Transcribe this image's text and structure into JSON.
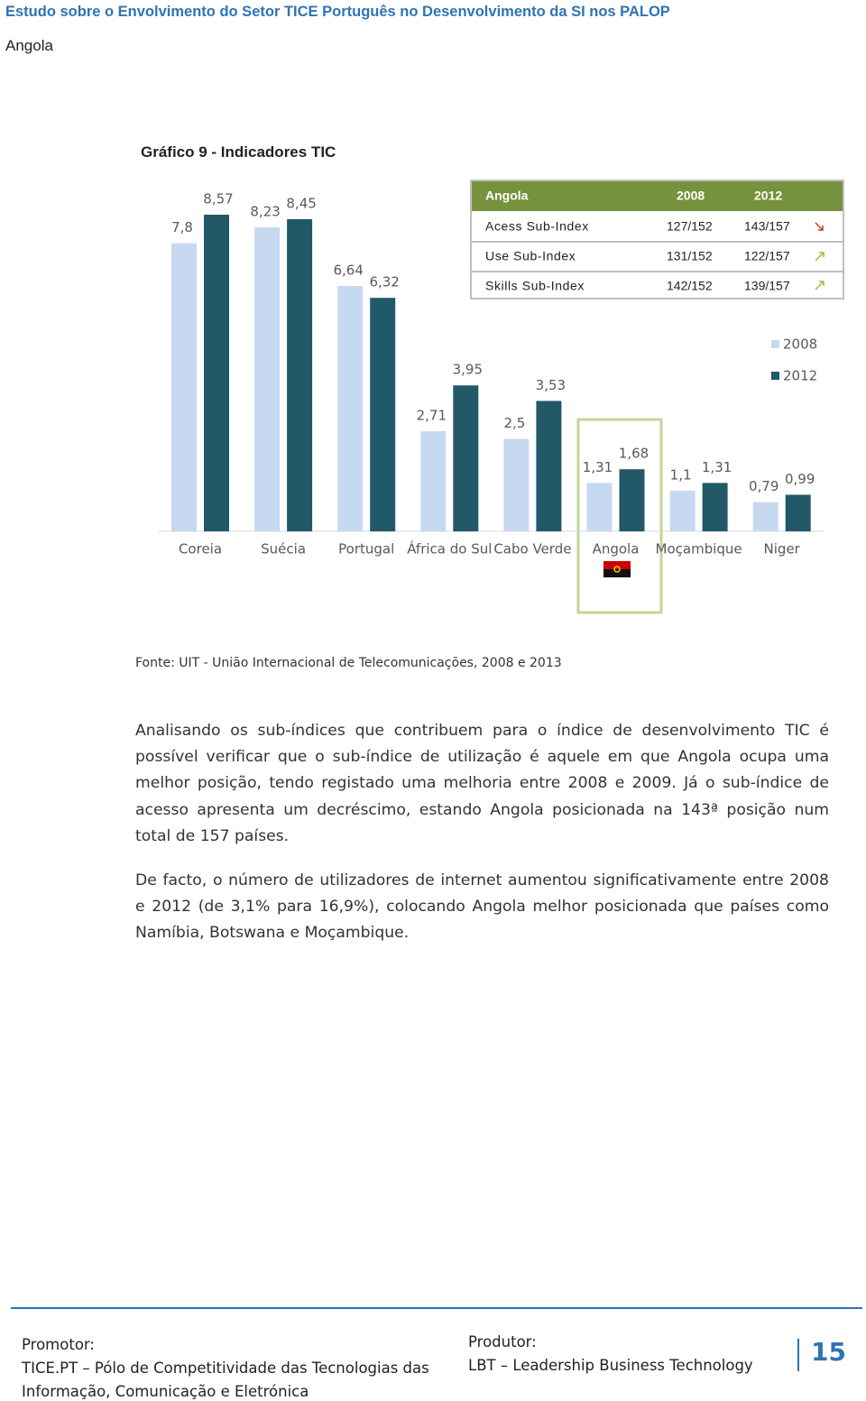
{
  "header": {
    "title": "Estudo sobre o Envolvimento do Setor TICE Português no Desenvolvimento da SI nos PALOP",
    "subtitle": "Angola"
  },
  "figure": {
    "caption": "Gráfico 9 - Indicadores TIC",
    "source": "Fonte: UIT - União Internacional de Telecomunicações, 2008 e 2013"
  },
  "chart_data": {
    "type": "bar",
    "categories": [
      "Coreia",
      "Suécia",
      "Portugal",
      "África do Sul",
      "Cabo Verde",
      "Angola",
      "Moçambique",
      "Niger"
    ],
    "series": [
      {
        "name": "2008",
        "color": "#c6d9f1",
        "values": [
          7.8,
          8.23,
          6.64,
          2.71,
          2.5,
          1.31,
          1.1,
          0.79
        ],
        "value_labels": [
          "7,8",
          "8,23",
          "6,64",
          "2,71",
          "2,5",
          "1,31",
          "1,1",
          "0,79"
        ]
      },
      {
        "name": "2012",
        "color": "#215968",
        "values": [
          8.57,
          8.45,
          6.32,
          3.95,
          3.53,
          1.68,
          1.31,
          0.99
        ],
        "value_labels": [
          "8,57",
          "8,45",
          "6,32",
          "3,95",
          "3,53",
          "1,68",
          "1,31",
          "0,99"
        ]
      }
    ]
  },
  "table": {
    "header": [
      "Angola",
      "2008",
      "2012"
    ],
    "rows": [
      [
        "Acess Sub-Index",
        "127/152",
        "143/157"
      ],
      [
        "Use Sub-Index",
        "131/152",
        "122/157"
      ],
      [
        "Skills Sub-Index",
        "142/152",
        "139/157"
      ]
    ]
  },
  "body": {
    "paragraphs": [
      "Analisando os sub-índices que contribuem para o índice de desenvolvimento TIC é possível verificar que o sub-índice de utilização é aquele em que Angola ocupa uma melhor posição, tendo registado uma melhoria entre 2008 e 2009. Já o sub-índice de acesso apresenta um decréscimo, estando Angola posicionada na 143ª posição num total de 157 países.",
      "De facto, o número de utilizadores de internet aumentou significativamente entre 2008 e 2012 (de 3,1% para 16,9%), colocando Angola melhor posicionada que países como Namíbia, Botswana e Moçambique."
    ]
  },
  "footer": {
    "promotor_label": "Promotor:",
    "promotor": "TICE.PT – Pólo de Competitividade das Tecnologias das Informação, Comunicação e Eletrónica",
    "produtor_label": "Produtor:",
    "produtor": "LBT – Leadership Business Technology",
    "page": "15"
  }
}
